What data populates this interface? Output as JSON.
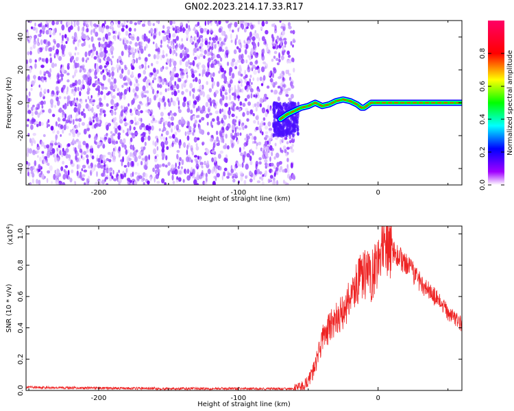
{
  "title": "GN02.2023.214.17.33.R17",
  "chart_data": [
    {
      "type": "heatmap",
      "title": "GN02.2023.214.17.33.R17",
      "xlabel": "Height of straight line (km)",
      "ylabel": "Frequency (Hz)",
      "xlim": [
        -252,
        60
      ],
      "ylim": [
        -50,
        50
      ],
      "x_ticks": [
        -200,
        -100,
        0
      ],
      "y_ticks": [
        -40,
        -20,
        0,
        20,
        40
      ],
      "noise_region_x": [
        -252,
        -60
      ],
      "signal_curve": {
        "x": [
          -70,
          -65,
          -60,
          -55,
          -50,
          -45,
          -40,
          -35,
          -30,
          -25,
          -20,
          -15,
          -12,
          -10,
          -5,
          0,
          10,
          30,
          60
        ],
        "y": [
          -10,
          -7,
          -5,
          -3,
          -2,
          0,
          -2,
          -1,
          1,
          2,
          1,
          -1,
          -3,
          -3,
          0,
          0,
          0,
          0,
          0
        ]
      },
      "colorbar": {
        "label": "Normalized spectral amplitude",
        "ticks": [
          0.0,
          0.2,
          0.4,
          0.6,
          0.8
        ],
        "range": [
          0,
          1
        ]
      },
      "grid": false
    },
    {
      "type": "line",
      "xlabel": "Height of straight line (km)",
      "ylabel": "SNR (10 * v/v)",
      "y_multiplier": "(x10",
      "y_multiplier_exp": "4",
      "y_multiplier_close": ")",
      "xlim": [
        -252,
        60
      ],
      "ylim": [
        0,
        1.05
      ],
      "x_ticks": [
        -200,
        -100,
        0
      ],
      "y_ticks": [
        0.0,
        0.2,
        0.4,
        0.6,
        0.8,
        1.0
      ],
      "series": [
        {
          "color": "#ee2222",
          "x": [
            -252,
            -200,
            -150,
            -100,
            -70,
            -60,
            -55,
            -50,
            -45,
            -40,
            -35,
            -30,
            -25,
            -20,
            -15,
            -10,
            -5,
            0,
            5,
            10,
            15,
            20,
            30,
            40,
            50,
            60
          ],
          "y": [
            0.02,
            0.015,
            0.012,
            0.012,
            0.01,
            0.01,
            0.02,
            0.06,
            0.15,
            0.33,
            0.4,
            0.45,
            0.5,
            0.6,
            0.68,
            0.75,
            0.72,
            0.85,
            0.9,
            0.9,
            0.85,
            0.8,
            0.7,
            0.6,
            0.5,
            0.42
          ]
        }
      ],
      "grid": false
    }
  ]
}
